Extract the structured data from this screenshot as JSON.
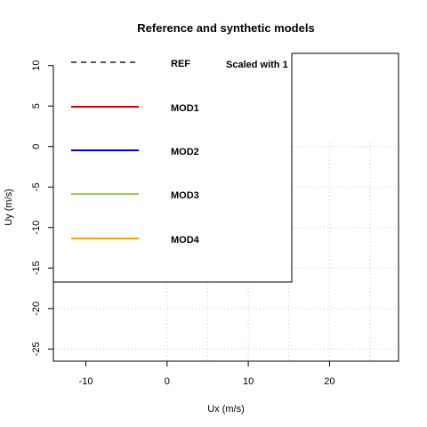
{
  "chart_data": {
    "type": "line",
    "title": "Reference and synthetic models",
    "xlabel": "Ux (m/s)",
    "ylabel": "Uy (m/s)",
    "xlim": [
      -14,
      28.5
    ],
    "ylim": [
      -26.5,
      11.5
    ],
    "x_ticks": [
      -10,
      0,
      10,
      20
    ],
    "y_ticks": [
      10,
      5,
      0,
      -5,
      -10,
      -15,
      -20,
      -25
    ],
    "grid": true,
    "grid_x": [
      0,
      5,
      10,
      15,
      20,
      25
    ],
    "grid_y": [
      10,
      5,
      0,
      -5,
      -10,
      -15,
      -20,
      -25
    ],
    "legend_placement": "left",
    "legend_note": "Scaled with 1",
    "series": [
      {
        "name": "REF",
        "color": "#555555",
        "dash": true,
        "values": []
      },
      {
        "name": "MOD1",
        "color": "#dd0000",
        "dash": false,
        "values": []
      },
      {
        "name": "MOD2",
        "color": "#0000cc",
        "dash": false,
        "values": []
      },
      {
        "name": "MOD3",
        "color": "#99cc55",
        "dash": false,
        "values": []
      },
      {
        "name": "MOD4",
        "color": "#ffa500",
        "dash": false,
        "values": []
      }
    ]
  }
}
